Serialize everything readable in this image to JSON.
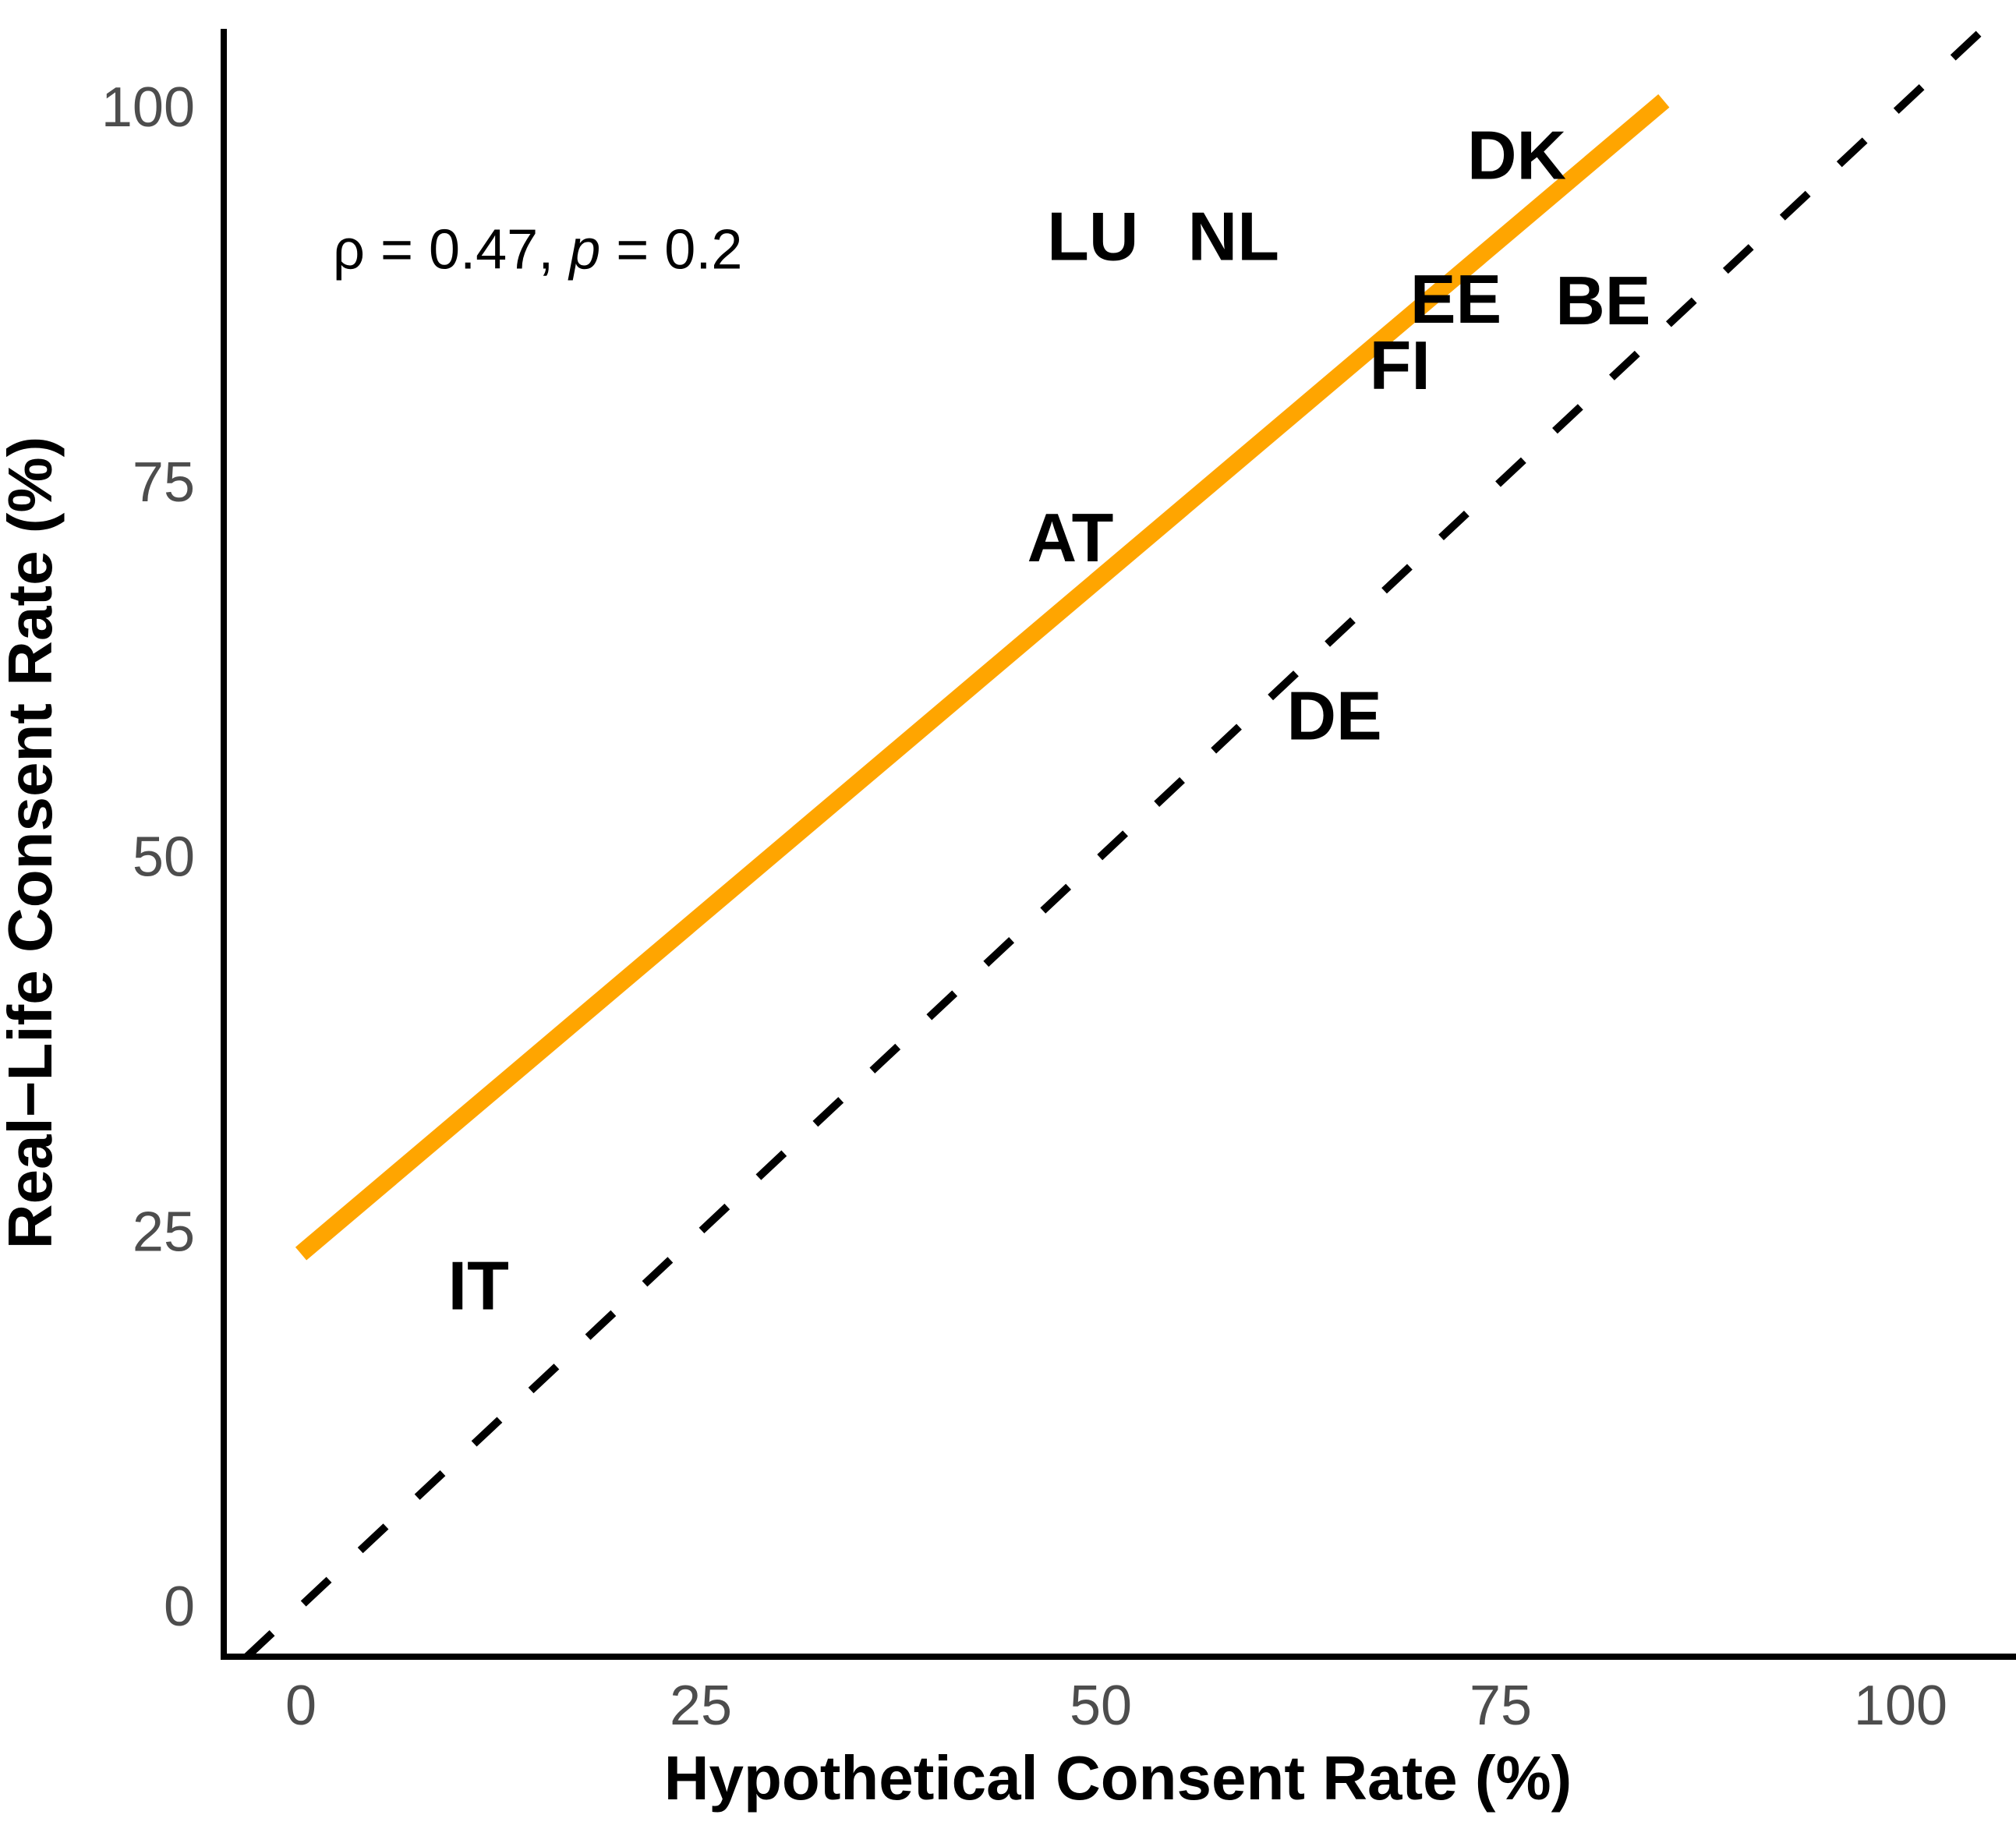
{
  "figure": {
    "background": "#ffffff"
  },
  "chart_data": {
    "type": "scatter",
    "title": "",
    "xlabel": "Hypothetical Consent Rate (%)",
    "ylabel": "Real−Life Consent Rate (%)",
    "xlim": [
      -5,
      107.2
    ],
    "ylim": [
      -3.4,
      105.2
    ],
    "x_ticks": [
      0,
      25,
      50,
      75,
      100
    ],
    "y_ticks": [
      0,
      25,
      50,
      75,
      100
    ],
    "grid": false,
    "legend": null,
    "points": [
      {
        "label": "DK",
        "x": 76.0,
        "y": 96.8
      },
      {
        "label": "LU",
        "x": 49.5,
        "y": 91.4
      },
      {
        "label": "NL",
        "x": 58.3,
        "y": 91.4
      },
      {
        "label": "EE",
        "x": 72.2,
        "y": 87.2
      },
      {
        "label": "BE",
        "x": 81.4,
        "y": 87.1
      },
      {
        "label": "FI",
        "x": 68.7,
        "y": 82.8
      },
      {
        "label": "AT",
        "x": 48.1,
        "y": 71.3
      },
      {
        "label": "DE",
        "x": 64.6,
        "y": 59.4
      },
      {
        "label": "IT",
        "x": 11.1,
        "y": 21.4
      }
    ],
    "trend_line": {
      "x1": 0,
      "y1": 23.5,
      "x2": 85.2,
      "y2": 100.4,
      "color": "#FFA500"
    },
    "identity_line": {
      "x1": -3.4,
      "y1": -3.4,
      "x2": 105.2,
      "y2": 105.2,
      "color": "#000000",
      "style": "dashed"
    },
    "annotation": {
      "x": 2,
      "y": 90.5,
      "segments": [
        {
          "text": "ρ",
          "italic": false
        },
        {
          "text": " = 0.47, ",
          "italic": false
        },
        {
          "text": "p",
          "italic": true
        },
        {
          "text": " = 0.2",
          "italic": false
        }
      ]
    },
    "colors": {
      "axis_text": "#4d4d4d",
      "axis_line": "#000000",
      "label_text": "#000000",
      "trend": "#FFA500"
    }
  }
}
